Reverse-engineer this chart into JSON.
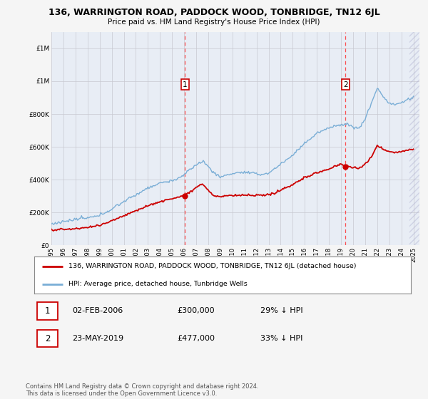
{
  "title": "136, WARRINGTON ROAD, PADDOCK WOOD, TONBRIDGE, TN12 6JL",
  "subtitle": "Price paid vs. HM Land Registry's House Price Index (HPI)",
  "background_color": "#f5f5f5",
  "plot_bg_color": "#e8edf5",
  "hpi_color": "#7aaed6",
  "price_color": "#cc0000",
  "dashed_line_color": "#ff3333",
  "sale1_year": 2006.08,
  "sale1_price": 300000,
  "sale2_year": 2019.38,
  "sale2_price": 477000,
  "ylim": [
    0,
    1300000
  ],
  "legend1_label": "136, WARRINGTON ROAD, PADDOCK WOOD, TONBRIDGE, TN12 6JL (detached house)",
  "legend2_label": "HPI: Average price, detached house, Tunbridge Wells",
  "annotation1_num": "1",
  "annotation1_date": "02-FEB-2006",
  "annotation1_price": "£300,000",
  "annotation1_hpi": "29% ↓ HPI",
  "annotation2_num": "2",
  "annotation2_date": "23-MAY-2019",
  "annotation2_price": "£477,000",
  "annotation2_hpi": "33% ↓ HPI",
  "footer": "Contains HM Land Registry data © Crown copyright and database right 2024.\nThis data is licensed under the Open Government Licence v3.0."
}
